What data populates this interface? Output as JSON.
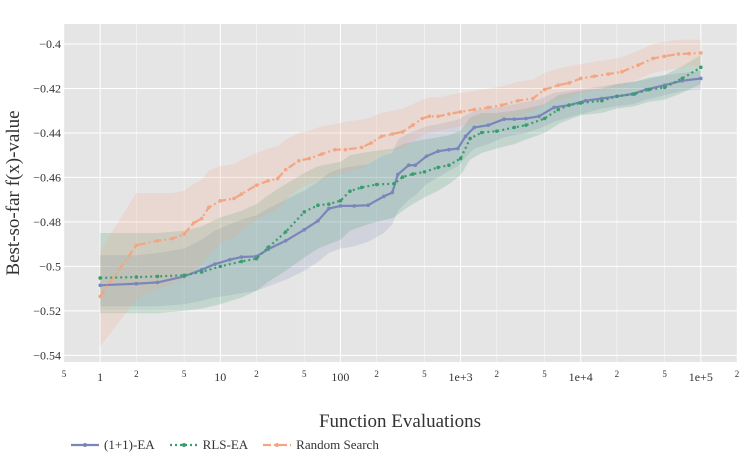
{
  "chart_data": {
    "type": "line",
    "xlabel": "Function Evaluations",
    "ylabel": "Best-so-far f(x)-value",
    "x_scale": "log",
    "xlim": [
      0.5,
      200000
    ],
    "ylim": [
      -0.543,
      -0.391
    ],
    "grid": true,
    "legend_position": "bottom-left",
    "x_major_ticks": [
      {
        "value": 1,
        "label": "1"
      },
      {
        "value": 10,
        "label": "10"
      },
      {
        "value": 100,
        "label": "100"
      },
      {
        "value": 1000,
        "label": "1e+3"
      },
      {
        "value": 10000,
        "label": "1e+4"
      },
      {
        "value": 100000,
        "label": "1e+5"
      }
    ],
    "x_minor_ticks": [
      {
        "value": 0.5,
        "label": "5"
      },
      {
        "value": 2,
        "label": "2"
      },
      {
        "value": 5,
        "label": "5"
      },
      {
        "value": 20,
        "label": "2"
      },
      {
        "value": 50,
        "label": "5"
      },
      {
        "value": 200,
        "label": "2"
      },
      {
        "value": 500,
        "label": "5"
      },
      {
        "value": 2000,
        "label": "2"
      },
      {
        "value": 5000,
        "label": "5"
      },
      {
        "value": 20000,
        "label": "2"
      },
      {
        "value": 50000,
        "label": "5"
      },
      {
        "value": 200000,
        "label": "2"
      }
    ],
    "y_ticks": [
      {
        "value": -0.4,
        "label": "−0.4"
      },
      {
        "value": -0.42,
        "label": "−0.42"
      },
      {
        "value": -0.44,
        "label": "−0.44"
      },
      {
        "value": -0.46,
        "label": "−0.46"
      },
      {
        "value": -0.48,
        "label": "−0.48"
      },
      {
        "value": -0.5,
        "label": "−0.5"
      },
      {
        "value": -0.52,
        "label": "−0.52"
      },
      {
        "value": -0.54,
        "label": "−0.54"
      }
    ],
    "series": [
      {
        "name": "(1+1)-EA",
        "color": "#7b85b9",
        "dash": "solid",
        "x": [
          1,
          2,
          3,
          5,
          7,
          9,
          12,
          15,
          20,
          25,
          35,
          50,
          65,
          80,
          100,
          130,
          170,
          230,
          270,
          300,
          370,
          420,
          520,
          650,
          800,
          950,
          1100,
          1300,
          1700,
          2300,
          2800,
          3500,
          4500,
          6000,
          8000,
          11000,
          15000,
          20000,
          27000,
          35000,
          50000,
          70000,
          100000
        ],
        "y": [
          -0.5085,
          -0.5078,
          -0.5072,
          -0.5045,
          -0.5015,
          -0.499,
          -0.497,
          -0.4958,
          -0.4955,
          -0.4923,
          -0.4885,
          -0.4835,
          -0.4795,
          -0.474,
          -0.4728,
          -0.4728,
          -0.4725,
          -0.4685,
          -0.4668,
          -0.4587,
          -0.4545,
          -0.4545,
          -0.4505,
          -0.4482,
          -0.4475,
          -0.447,
          -0.4415,
          -0.4375,
          -0.4365,
          -0.4338,
          -0.4338,
          -0.4335,
          -0.4325,
          -0.4285,
          -0.4275,
          -0.4255,
          -0.4245,
          -0.4235,
          -0.4225,
          -0.4205,
          -0.4185,
          -0.4165,
          -0.4155
        ],
        "band_lower": [
          -0.518,
          -0.518,
          -0.518,
          -0.517,
          -0.5155,
          -0.514,
          -0.513,
          -0.512,
          -0.511,
          -0.509,
          -0.506,
          -0.502,
          -0.498,
          -0.494,
          -0.492,
          -0.491,
          -0.489,
          -0.485,
          -0.481,
          -0.475,
          -0.47,
          -0.468,
          -0.463,
          -0.46,
          -0.457,
          -0.455,
          -0.451,
          -0.447,
          -0.445,
          -0.442,
          -0.441,
          -0.44,
          -0.438,
          -0.435,
          -0.433,
          -0.431,
          -0.429,
          -0.428,
          -0.427,
          -0.425,
          -0.423,
          -0.421,
          -0.4205
        ],
        "band_upper": [
          -0.495,
          -0.495,
          -0.494,
          -0.492,
          -0.488,
          -0.484,
          -0.481,
          -0.479,
          -0.477,
          -0.474,
          -0.47,
          -0.466,
          -0.462,
          -0.458,
          -0.456,
          -0.455,
          -0.454,
          -0.45,
          -0.449,
          -0.443,
          -0.44,
          -0.439,
          -0.437,
          -0.436,
          -0.435,
          -0.434,
          -0.432,
          -0.43,
          -0.429,
          -0.428,
          -0.427,
          -0.426,
          -0.425,
          -0.422,
          -0.421,
          -0.42,
          -0.419,
          -0.418,
          -0.417,
          -0.416,
          -0.414,
          -0.413,
          -0.412
        ]
      },
      {
        "name": "RLS-EA",
        "color": "#3a9d6e",
        "dash": "dotted",
        "x": [
          1,
          2,
          3,
          5,
          7,
          10,
          15,
          20,
          25,
          35,
          50,
          65,
          80,
          100,
          120,
          150,
          200,
          280,
          330,
          400,
          500,
          650,
          800,
          1000,
          1200,
          1500,
          2000,
          2800,
          3500,
          5000,
          6500,
          8000,
          10000,
          15000,
          20000,
          28000,
          37000,
          50000,
          70000,
          100000
        ],
        "y": [
          -0.5052,
          -0.5048,
          -0.5045,
          -0.504,
          -0.5025,
          -0.5,
          -0.4978,
          -0.4965,
          -0.4915,
          -0.4845,
          -0.4755,
          -0.4725,
          -0.472,
          -0.4705,
          -0.4662,
          -0.4645,
          -0.4632,
          -0.4628,
          -0.4598,
          -0.4585,
          -0.4575,
          -0.4555,
          -0.4545,
          -0.4515,
          -0.4425,
          -0.4398,
          -0.4392,
          -0.4375,
          -0.4365,
          -0.4335,
          -0.4295,
          -0.4275,
          -0.4265,
          -0.4255,
          -0.4235,
          -0.4225,
          -0.4205,
          -0.4195,
          -0.4155,
          -0.4105
        ],
        "band_lower": [
          -0.521,
          -0.521,
          -0.521,
          -0.52,
          -0.519,
          -0.517,
          -0.514,
          -0.511,
          -0.507,
          -0.502,
          -0.496,
          -0.492,
          -0.49,
          -0.488,
          -0.484,
          -0.482,
          -0.48,
          -0.478,
          -0.475,
          -0.472,
          -0.469,
          -0.466,
          -0.463,
          -0.459,
          -0.452,
          -0.449,
          -0.447,
          -0.445,
          -0.443,
          -0.44,
          -0.436,
          -0.434,
          -0.432,
          -0.431,
          -0.429,
          -0.428,
          -0.426,
          -0.425,
          -0.422,
          -0.418
        ],
        "band_upper": [
          -0.485,
          -0.485,
          -0.485,
          -0.484,
          -0.482,
          -0.478,
          -0.475,
          -0.472,
          -0.468,
          -0.463,
          -0.458,
          -0.455,
          -0.454,
          -0.453,
          -0.45,
          -0.449,
          -0.448,
          -0.447,
          -0.445,
          -0.444,
          -0.443,
          -0.442,
          -0.441,
          -0.439,
          -0.433,
          -0.431,
          -0.431,
          -0.43,
          -0.429,
          -0.427,
          -0.423,
          -0.422,
          -0.421,
          -0.42,
          -0.418,
          -0.417,
          -0.415,
          -0.414,
          -0.41,
          -0.405
        ]
      },
      {
        "name": "Random Search",
        "color": "#f4a582",
        "dash": "dashdot",
        "x": [
          1,
          2,
          3,
          4,
          5,
          6,
          7,
          8,
          10,
          13,
          15,
          20,
          25,
          30,
          35,
          45,
          55,
          70,
          90,
          110,
          150,
          180,
          220,
          270,
          330,
          400,
          480,
          550,
          650,
          800,
          1000,
          1300,
          1700,
          2200,
          3000,
          4000,
          5000,
          6500,
          8000,
          10000,
          13000,
          17000,
          22000,
          30000,
          40000,
          50000,
          65000,
          80000,
          100000
        ],
        "y": [
          -0.5135,
          -0.4905,
          -0.4885,
          -0.4875,
          -0.4855,
          -0.4805,
          -0.4785,
          -0.4735,
          -0.4705,
          -0.4695,
          -0.4675,
          -0.4635,
          -0.4615,
          -0.4605,
          -0.4565,
          -0.4525,
          -0.4515,
          -0.4495,
          -0.4475,
          -0.4475,
          -0.4465,
          -0.4445,
          -0.4415,
          -0.4405,
          -0.4395,
          -0.4365,
          -0.4335,
          -0.4325,
          -0.4325,
          -0.4315,
          -0.4305,
          -0.4295,
          -0.4285,
          -0.4275,
          -0.4255,
          -0.4245,
          -0.4205,
          -0.4185,
          -0.4175,
          -0.4155,
          -0.4145,
          -0.4135,
          -0.4125,
          -0.4095,
          -0.4065,
          -0.4055,
          -0.4045,
          -0.4043,
          -0.404
        ],
        "band_lower": [
          -0.536,
          -0.515,
          -0.51,
          -0.508,
          -0.506,
          -0.502,
          -0.499,
          -0.495,
          -0.49,
          -0.487,
          -0.484,
          -0.479,
          -0.476,
          -0.474,
          -0.47,
          -0.465,
          -0.463,
          -0.461,
          -0.459,
          -0.458,
          -0.456,
          -0.453,
          -0.45,
          -0.448,
          -0.447,
          -0.444,
          -0.441,
          -0.44,
          -0.439,
          -0.438,
          -0.437,
          -0.436,
          -0.435,
          -0.434,
          -0.432,
          -0.43,
          -0.427,
          -0.425,
          -0.424,
          -0.422,
          -0.421,
          -0.42,
          -0.419,
          -0.416,
          -0.413,
          -0.412,
          -0.411,
          -0.41,
          -0.41
        ],
        "band_upper": [
          -0.493,
          -0.467,
          -0.467,
          -0.467,
          -0.466,
          -0.463,
          -0.461,
          -0.457,
          -0.455,
          -0.454,
          -0.452,
          -0.449,
          -0.447,
          -0.446,
          -0.443,
          -0.44,
          -0.439,
          -0.437,
          -0.436,
          -0.435,
          -0.434,
          -0.433,
          -0.431,
          -0.43,
          -0.429,
          -0.427,
          -0.425,
          -0.424,
          -0.424,
          -0.423,
          -0.422,
          -0.421,
          -0.42,
          -0.419,
          -0.417,
          -0.416,
          -0.413,
          -0.411,
          -0.41,
          -0.409,
          -0.408,
          -0.407,
          -0.406,
          -0.403,
          -0.4,
          -0.399,
          -0.398,
          -0.398,
          -0.398
        ]
      }
    ]
  }
}
